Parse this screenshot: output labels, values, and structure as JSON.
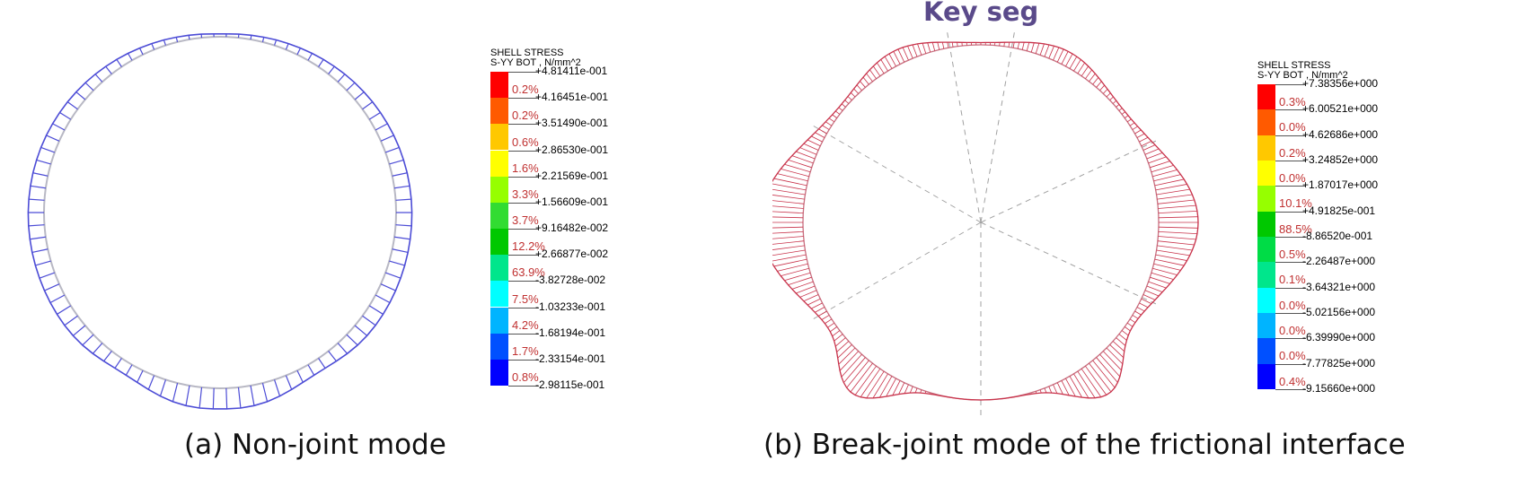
{
  "panel_a": {
    "caption": "(a) Non-joint mode",
    "legend": {
      "title_line1": "SHELL STRESS",
      "title_line2": "S-YY BOT , N/mm^2",
      "bounds": [
        "+4.81411e-001",
        "+4.16451e-001",
        "+3.51490e-001",
        "+2.86530e-001",
        "+2.21569e-001",
        "+1.56609e-001",
        "+9.16482e-002",
        "+2.66877e-002",
        "-3.82728e-002",
        "-1.03233e-001",
        "-1.68194e-001",
        "-2.33154e-001",
        "-2.98115e-001"
      ],
      "percents": [
        "0.2%",
        "0.2%",
        "0.6%",
        "1.6%",
        "3.3%",
        "3.7%",
        "12.2%",
        "63.9%",
        "7.5%",
        "4.2%",
        "1.7%",
        "0.8%"
      ],
      "colors": [
        "#ff0000",
        "#ff5a00",
        "#ffc800",
        "#ffff00",
        "#96ff00",
        "#32dc32",
        "#00c800",
        "#00e68c",
        "#00ffff",
        "#00b4ff",
        "#0050ff",
        "#0000ff"
      ]
    },
    "diagram_color": "#4c4cd6"
  },
  "panel_b": {
    "caption": "(b) Break-joint mode of the frictional interface",
    "key_label": "Key seg",
    "legend": {
      "title_line1": "SHELL STRESS",
      "title_line2": "S-YY BOT , N/mm^2",
      "bounds": [
        "+7.38356e+000",
        "+6.00521e+000",
        "+4.62686e+000",
        "+3.24852e+000",
        "+1.87017e+000",
        "+4.91825e-001",
        "-8.86520e-001",
        "-2.26487e+000",
        "-3.64321e+000",
        "-5.02156e+000",
        "-6.39990e+000",
        "-7.77825e+000",
        "-9.15660e+000"
      ],
      "percents": [
        "0.3%",
        "0.0%",
        "0.2%",
        "0.0%",
        "10.1%",
        "88.5%",
        "0.5%",
        "0.1%",
        "0.0%",
        "0.0%",
        "0.0%",
        "0.4%"
      ],
      "colors": [
        "#ff0000",
        "#ff5a00",
        "#ffc800",
        "#ffff00",
        "#96ff00",
        "#00c800",
        "#00dc46",
        "#00e68c",
        "#00ffff",
        "#00b4ff",
        "#0050ff",
        "#0000ff"
      ]
    },
    "diagram_color": "#c8324a"
  }
}
